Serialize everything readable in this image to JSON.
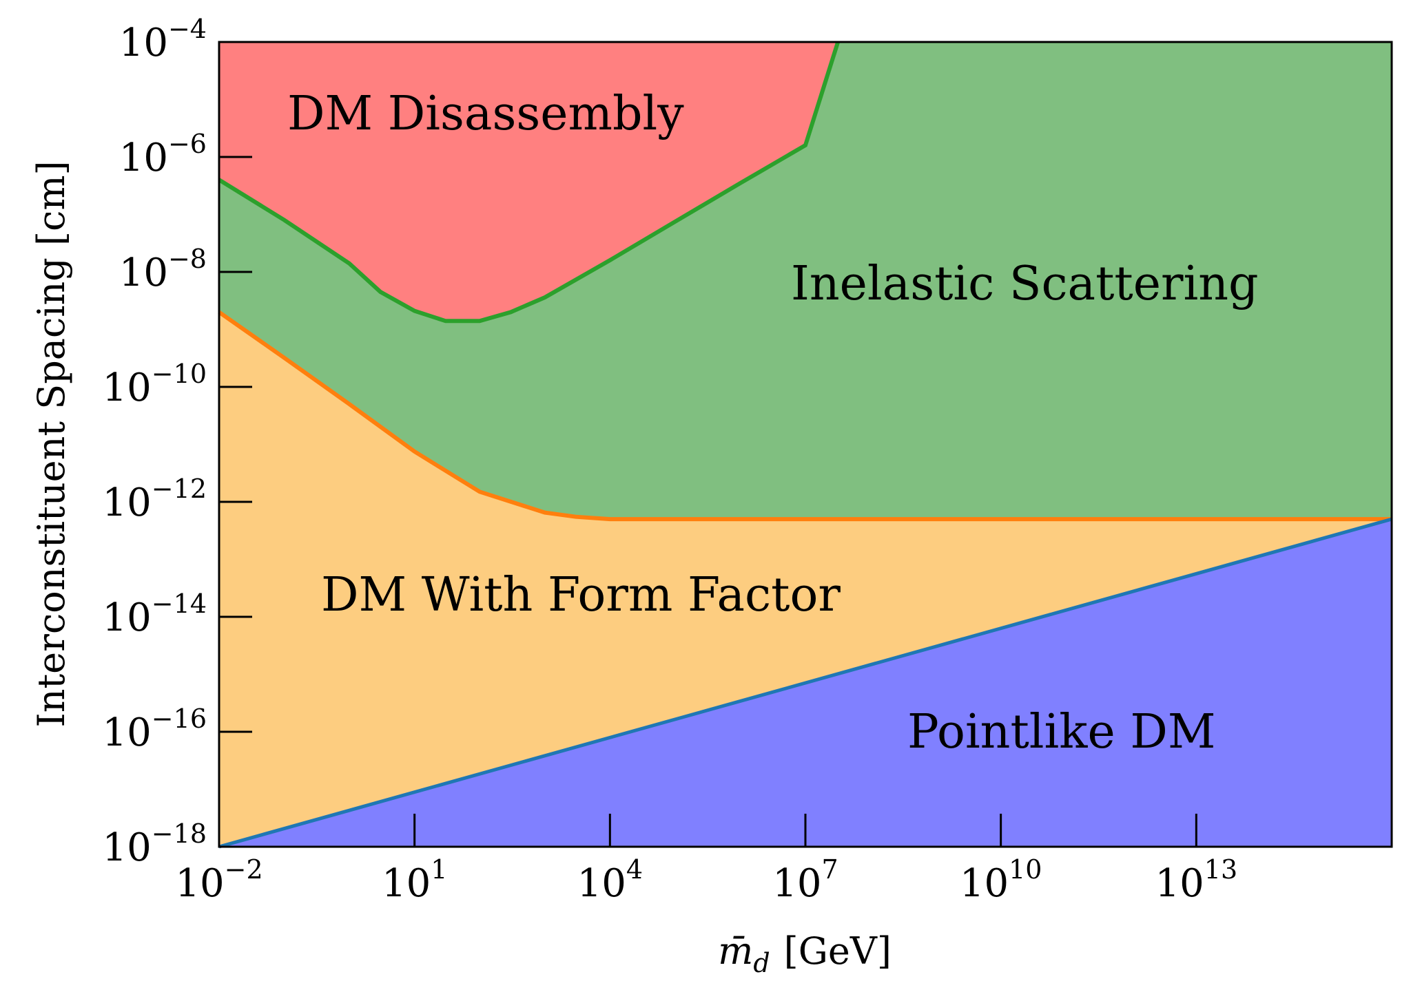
{
  "chart_data": {
    "type": "area",
    "title": "",
    "xlabel": "m̄",
    "xlabel_sub": "d",
    "xlabel_unit": "[GeV]",
    "ylabel": "Interconstituent Spacing [cm]",
    "xscale": "log",
    "yscale": "log",
    "xlim": [
      0.01,
      1e+16
    ],
    "ylim": [
      1e-18,
      0.0001
    ],
    "x_ticks": [
      {
        "base": "10",
        "exp": "−2",
        "value": 0.01
      },
      {
        "base": "10",
        "exp": "1",
        "value": 10
      },
      {
        "base": "10",
        "exp": "4",
        "value": 10000
      },
      {
        "base": "10",
        "exp": "7",
        "value": 10000000.0
      },
      {
        "base": "10",
        "exp": "10",
        "value": 10000000000.0
      },
      {
        "base": "10",
        "exp": "13",
        "value": 10000000000000.0
      }
    ],
    "y_ticks": [
      {
        "base": "10",
        "exp": "−4",
        "value": 0.0001
      },
      {
        "base": "10",
        "exp": "−6",
        "value": 1e-06
      },
      {
        "base": "10",
        "exp": "−8",
        "value": 1e-08
      },
      {
        "base": "10",
        "exp": "−10",
        "value": 1e-10
      },
      {
        "base": "10",
        "exp": "−12",
        "value": 1e-12
      },
      {
        "base": "10",
        "exp": "−14",
        "value": 1e-14
      },
      {
        "base": "10",
        "exp": "−16",
        "value": 1e-16
      },
      {
        "base": "10",
        "exp": "−18",
        "value": 1e-18
      }
    ],
    "regions": [
      {
        "name": "DM Disassembly",
        "color": "#ff8080"
      },
      {
        "name": "Inelastic Scattering",
        "color": "#80bf80"
      },
      {
        "name": "DM With Form Factor",
        "color": "#fdcd80"
      },
      {
        "name": "Pointlike DM",
        "color": "#8080ff"
      }
    ],
    "labels": [
      {
        "text": "DM Disassembly",
        "x": 0.1,
        "y": 4e-06
      },
      {
        "text": "Inelastic Scattering",
        "x": 20000000.0,
        "y": 5e-09
      },
      {
        "text": "DM With Form Factor",
        "x": 0.1,
        "y": 1.3e-14
      },
      {
        "text": "Pointlike DM",
        "x": 600000000.0,
        "y": 1.1e-16
      }
    ],
    "series": [
      {
        "color": "#2ca02c",
        "x": [
          0.01,
          0.1,
          1,
          3,
          10,
          30,
          100,
          300,
          1000,
          10000,
          100000,
          1000000,
          10000000,
          31600000
        ],
        "y": [
          4e-07,
          8e-08,
          1.4e-08,
          4.5e-09,
          2.1e-09,
          1.4e-09,
          1.4e-09,
          2e-09,
          3.6e-09,
          1.6e-08,
          7.5e-08,
          3.5e-07,
          1.6e-06,
          0.0001
        ]
      },
      {
        "color": "#ff7f0e",
        "x": [
          0.01,
          0.1,
          1,
          10,
          100,
          1000,
          3000,
          10000,
          100000,
          1e+16
        ],
        "y": [
          2e-09,
          3.2e-10,
          5e-11,
          7.5e-12,
          1.5e-12,
          6.5e-13,
          5.5e-13,
          5e-13,
          5e-13,
          5e-13
        ]
      },
      {
        "color": "#1f77b4",
        "x": [
          0.01,
          1e+16
        ],
        "y": [
          1e-18,
          5e-13
        ]
      }
    ]
  }
}
